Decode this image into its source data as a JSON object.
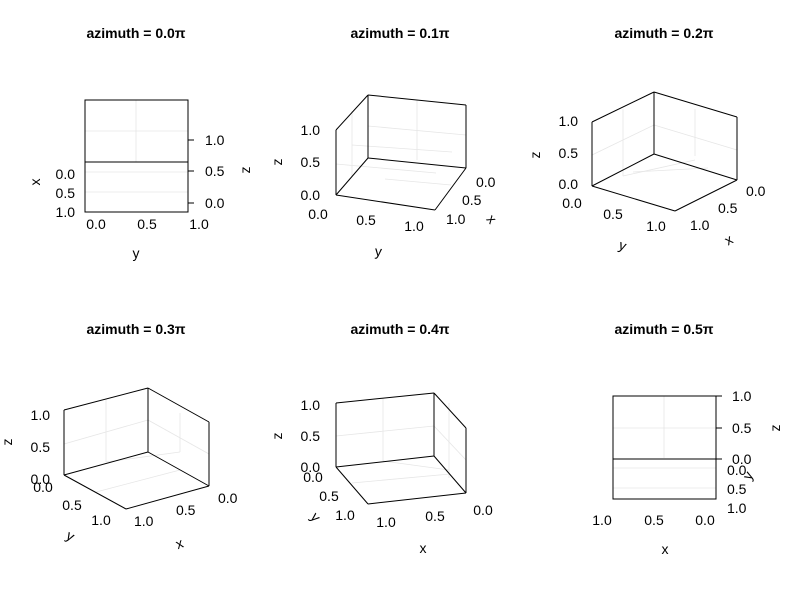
{
  "figure": {
    "panels": [
      {
        "title": "azimuth = 0.0π"
      },
      {
        "title": "azimuth = 0.1π"
      },
      {
        "title": "azimuth = 0.2π"
      },
      {
        "title": "azimuth = 0.3π"
      },
      {
        "title": "azimuth = 0.4π"
      },
      {
        "title": "azimuth = 0.5π"
      }
    ]
  },
  "chart_data": [
    {
      "type": "scatter",
      "title": "azimuth = 0.0π",
      "azimuth": "0.0π",
      "xlabel": "x",
      "ylabel": "y",
      "zlabel": "z",
      "xlim": [
        0,
        1
      ],
      "ylim": [
        0,
        1
      ],
      "zlim": [
        0,
        1
      ],
      "xticks": [
        "0.0",
        "0.5",
        "1.0"
      ],
      "yticks": [
        "0.0",
        "0.5",
        "1.0"
      ],
      "zticks": [
        "0.0",
        "0.5",
        "1.0"
      ],
      "grid": true,
      "values": []
    },
    {
      "type": "scatter",
      "title": "azimuth = 0.1π",
      "azimuth": "0.1π",
      "xlabel": "x",
      "ylabel": "y",
      "zlabel": "z",
      "xlim": [
        0,
        1
      ],
      "ylim": [
        0,
        1
      ],
      "zlim": [
        0,
        1
      ],
      "xticks": [
        "0.0",
        "0.5",
        "1.0"
      ],
      "yticks": [
        "0.0",
        "0.5",
        "1.0"
      ],
      "zticks": [
        "0.0",
        "0.5",
        "1.0"
      ],
      "grid": true,
      "values": []
    },
    {
      "type": "scatter",
      "title": "azimuth = 0.2π",
      "azimuth": "0.2π",
      "xlabel": "x",
      "ylabel": "y",
      "zlabel": "z",
      "xlim": [
        0,
        1
      ],
      "ylim": [
        0,
        1
      ],
      "zlim": [
        0,
        1
      ],
      "xticks": [
        "0.0",
        "0.5",
        "1.0"
      ],
      "yticks": [
        "0.0",
        "0.5",
        "1.0"
      ],
      "zticks": [
        "0.0",
        "0.5",
        "1.0"
      ],
      "grid": true,
      "values": []
    },
    {
      "type": "scatter",
      "title": "azimuth = 0.3π",
      "azimuth": "0.3π",
      "xlabel": "x",
      "ylabel": "y",
      "zlabel": "z",
      "xlim": [
        0,
        1
      ],
      "ylim": [
        0,
        1
      ],
      "zlim": [
        0,
        1
      ],
      "xticks": [
        "0.0",
        "0.5",
        "1.0"
      ],
      "yticks": [
        "0.0",
        "0.5",
        "1.0"
      ],
      "zticks": [
        "0.0",
        "0.5",
        "1.0"
      ],
      "grid": true,
      "values": []
    },
    {
      "type": "scatter",
      "title": "azimuth = 0.4π",
      "azimuth": "0.4π",
      "xlabel": "x",
      "ylabel": "y",
      "zlabel": "z",
      "xlim": [
        0,
        1
      ],
      "ylim": [
        0,
        1
      ],
      "zlim": [
        0,
        1
      ],
      "xticks": [
        "0.0",
        "0.5",
        "1.0"
      ],
      "yticks": [
        "0.0",
        "0.5",
        "1.0"
      ],
      "zticks": [
        "0.0",
        "0.5",
        "1.0"
      ],
      "grid": true,
      "values": []
    },
    {
      "type": "scatter",
      "title": "azimuth = 0.5π",
      "azimuth": "0.5π",
      "xlabel": "x",
      "ylabel": "y",
      "zlabel": "z",
      "xlim": [
        0,
        1
      ],
      "ylim": [
        0,
        1
      ],
      "zlim": [
        0,
        1
      ],
      "xticks": [
        "0.0",
        "0.5",
        "1.0"
      ],
      "yticks": [
        "0.0",
        "0.5",
        "1.0"
      ],
      "zticks": [
        "0.0",
        "0.5",
        "1.0"
      ],
      "grid": true,
      "values": []
    }
  ]
}
